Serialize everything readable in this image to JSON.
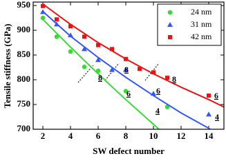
{
  "chart_data": {
    "type": "scatter",
    "x_label": "SW defect number",
    "y_label": "Tensile stiffness (GPa)",
    "xlim": [
      1.3,
      15.1
    ],
    "ylim": [
      700,
      957
    ],
    "xticks": [
      2,
      4,
      6,
      8,
      10,
      12,
      14
    ],
    "yticks": [
      700,
      750,
      800,
      850,
      900,
      950
    ],
    "legend": "upper right",
    "series": [
      {
        "name": "24 nm",
        "color": "#33dd33",
        "marker": "circle",
        "x": [
          2,
          3,
          4,
          5,
          6,
          8,
          11
        ],
        "values": [
          925,
          887,
          857,
          826,
          818,
          777,
          745
        ],
        "fit": {
          "x": [
            2,
            4,
            6,
            8,
            10,
            10.4
          ],
          "values": [
            922,
            866,
            812,
            760,
            710,
            700
          ]
        }
      },
      {
        "name": "31 nm",
        "color": "#3355ff",
        "marker": "triangle",
        "x": [
          2,
          3,
          4,
          5,
          6,
          7,
          8,
          10,
          14
        ],
        "values": [
          937,
          912,
          890,
          862,
          840,
          820,
          820,
          772,
          730
        ],
        "fit": {
          "x": [
            2,
            4,
            6,
            8,
            10,
            12,
            14,
            14.1
          ],
          "values": [
            938,
            888,
            845,
            805,
            768,
            733,
            702,
            700
          ]
        }
      },
      {
        "name": "42 nm",
        "color": "#ee1111",
        "marker": "square",
        "x": [
          2,
          3,
          4,
          5,
          6,
          7,
          8,
          9,
          10,
          11,
          14
        ],
        "values": [
          949,
          922,
          908,
          887,
          870,
          862,
          842,
          822,
          815,
          804,
          768
        ],
        "fit": {
          "x": [
            2,
            4,
            6,
            8,
            10,
            12,
            14,
            15.1
          ],
          "values": [
            953,
            912,
            875,
            842,
            812,
            785,
            760,
            745
          ]
        }
      }
    ],
    "annotations": [
      "8",
      "6",
      "4",
      "8",
      "6",
      "4",
      "8",
      "6"
    ]
  }
}
